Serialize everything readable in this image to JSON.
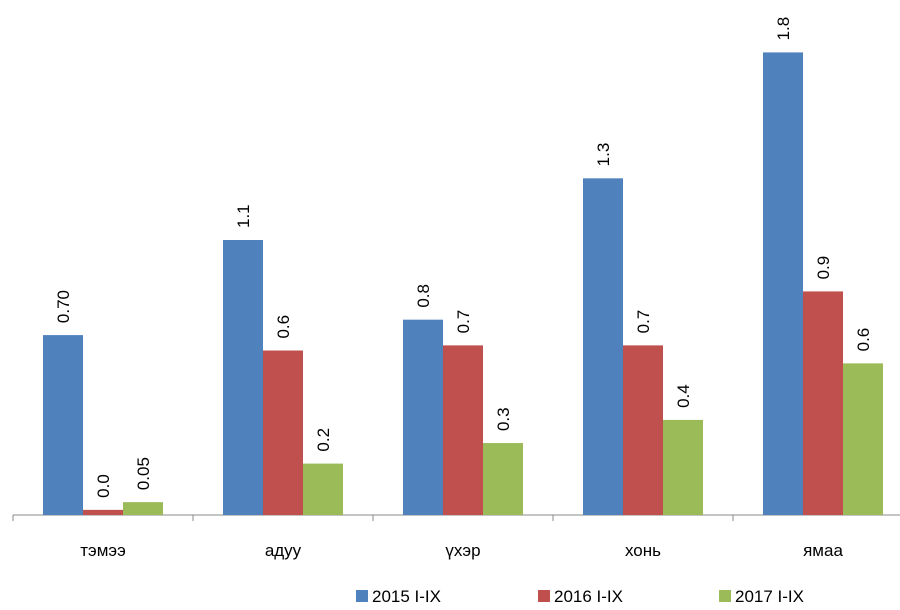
{
  "chart_data": {
    "type": "bar",
    "categories": [
      "тэмээ",
      "адуу",
      "үхэр",
      "хонь",
      "ямаа"
    ],
    "series": [
      {
        "name": "2015 I-IX",
        "color": "#4f81bd",
        "values": [
          0.7,
          1.07,
          0.76,
          1.31,
          1.8
        ],
        "value_labels": [
          "0.70",
          "1.1",
          "0.8",
          "1.3",
          "1.8"
        ]
      },
      {
        "name": "2016 I-IX",
        "color": "#c0504d",
        "values": [
          0.02,
          0.64,
          0.66,
          0.66,
          0.87
        ],
        "value_labels": [
          "0.0",
          "0.6",
          "0.7",
          "0.7",
          "0.9"
        ]
      },
      {
        "name": "2017 I-IX",
        "color": "#9bbb59",
        "values": [
          0.05,
          0.2,
          0.28,
          0.37,
          0.59
        ],
        "value_labels": [
          "0.05",
          "0.2",
          "0.3",
          "0.4",
          "0.6"
        ]
      }
    ],
    "ylim": [
      0,
      2
    ]
  }
}
